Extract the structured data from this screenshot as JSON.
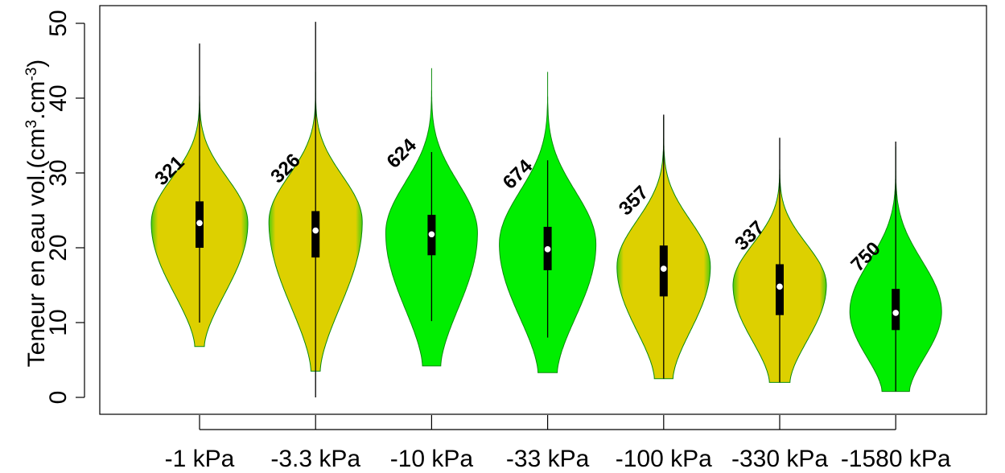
{
  "chart_data": {
    "type": "violin",
    "ylabel": {
      "prefix": "Teneur en eau vol.(cm",
      "sup1": "3",
      "middle": ".cm",
      "sup2": "-3",
      "suffix": ")"
    },
    "ylim": [
      0,
      52
    ],
    "yticks": [
      0,
      10,
      20,
      30,
      40,
      50
    ],
    "grid": false,
    "colors": {
      "yellow_fill": "#ddd000",
      "green_fill": "#00ee00",
      "outline": "#0a8a0a"
    },
    "groups": [
      {
        "label": "-1 kPa",
        "n": "321",
        "fill": "yellow",
        "min": 6.8,
        "max": 43,
        "whisker_low": 10,
        "whisker_high": 47.3,
        "q1": 20,
        "median": 23.3,
        "q3": 26.2,
        "mode": 23.3,
        "max_half_width": 60,
        "low_width": 0.1,
        "count_y": 28.2
      },
      {
        "label": "-3.3 kPa",
        "n": "326",
        "fill": "yellow",
        "min": 3.5,
        "max": 43.5,
        "whisker_low": 0,
        "whisker_high": 50.2,
        "q1": 18.7,
        "median": 22.3,
        "q3": 24.9,
        "mode": 23.5,
        "max_half_width": 58,
        "low_width": 0.1,
        "count_y": 28.5
      },
      {
        "label": "-10 kPa",
        "n": "624",
        "fill": "green",
        "min": 4.2,
        "max": 44,
        "whisker_low": 10.2,
        "whisker_high": 32.8,
        "q1": 19,
        "median": 21.8,
        "q3": 24.4,
        "mode": 22,
        "max_half_width": 57,
        "low_width": 0.2,
        "count_y": 30.5
      },
      {
        "label": "-33 kPa",
        "n": "674",
        "fill": "green",
        "min": 3.3,
        "max": 43.5,
        "whisker_low": 8,
        "whisker_high": 31.7,
        "q1": 17,
        "median": 19.8,
        "q3": 22.8,
        "mode": 20.5,
        "max_half_width": 60,
        "low_width": 0.2,
        "count_y": 27.7
      },
      {
        "label": "-100 kPa",
        "n": "357",
        "fill": "yellow",
        "min": 2.5,
        "max": 37.5,
        "whisker_low": 2.5,
        "whisker_high": 37.8,
        "q1": 13.5,
        "median": 17.2,
        "q3": 20.3,
        "mode": 17.5,
        "max_half_width": 58,
        "low_width": 0.2,
        "count_y": 24.2
      },
      {
        "label": "-330 kPa",
        "n": "337",
        "fill": "yellow",
        "min": 2,
        "max": 33,
        "whisker_low": 2,
        "whisker_high": 34.7,
        "q1": 11,
        "median": 14.8,
        "q3": 17.8,
        "mode": 15,
        "max_half_width": 58,
        "low_width": 0.22,
        "count_y": 19.5
      },
      {
        "label": "-1580 kPa",
        "n": "750",
        "fill": "green",
        "min": 0.8,
        "max": 33.5,
        "whisker_low": 0.8,
        "whisker_high": 34.2,
        "q1": 9,
        "median": 11.3,
        "q3": 14.5,
        "mode": 11.5,
        "max_half_width": 57,
        "low_width": 0.3,
        "count_y": 16.7
      }
    ]
  }
}
